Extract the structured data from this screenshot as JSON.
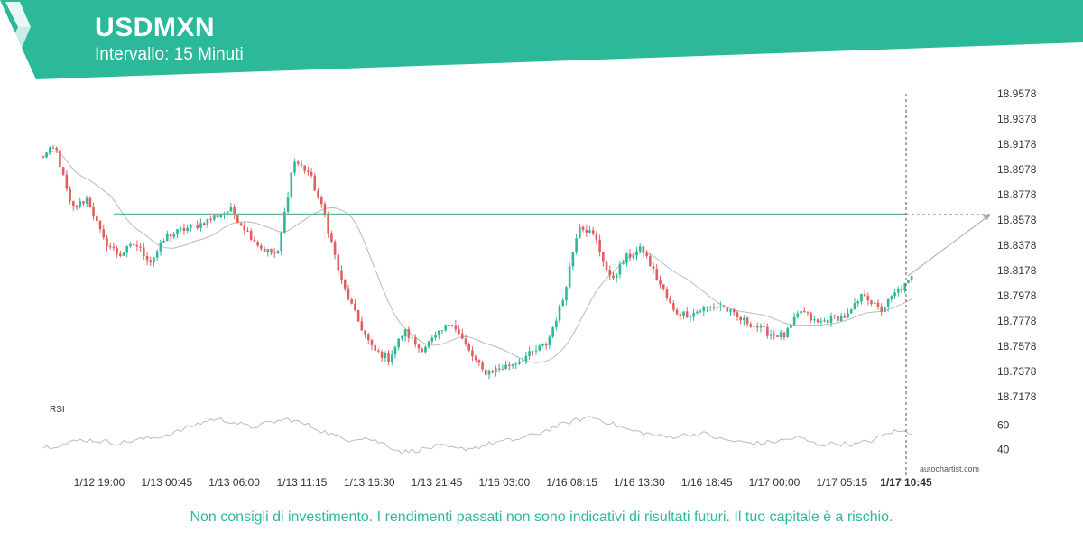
{
  "header": {
    "symbol": "USDMXN",
    "interval": "Intervallo: 15 Minuti"
  },
  "footer": {
    "disclaimer": "Non consigli di investimento. I rendimenti passati non sono indicativi di risultati futuri. Il tuo capitale è a rischio.",
    "watermark": "autochartist.com"
  },
  "colors": {
    "brand": "#2bb99a",
    "up": "#2bb99a",
    "down": "#e0605f",
    "resistance": "#5fb98a",
    "moving_average": "#bbbbbb"
  },
  "chart_data": {
    "type": "candlestick",
    "symbol": "USDMXN",
    "y_ticks": [
      "18.9578",
      "18.9378",
      "18.9178",
      "18.8978",
      "18.8778",
      "18.8578",
      "18.8378",
      "18.8178",
      "18.7978",
      "18.7778",
      "18.7578",
      "18.7378",
      "18.7178"
    ],
    "ylim": [
      18.7178,
      18.9578
    ],
    "x_ticks": [
      "1/12 19:00",
      "1/13 00:45",
      "1/13 06:00",
      "1/13 11:15",
      "1/13 16:30",
      "1/13 21:45",
      "1/16 03:00",
      "1/16 08:15",
      "1/16 13:30",
      "1/16 18:45",
      "1/17 00:00",
      "1/17 05:15",
      "1/17 10:45"
    ],
    "current_time_label": "1/17 10:45",
    "resistance_level": 18.8623,
    "forecast": {
      "from": 18.8135,
      "to": 18.8623
    },
    "price_anchors": [
      18.907,
      18.915,
      18.866,
      18.875,
      18.842,
      18.83,
      18.839,
      18.825,
      18.845,
      18.85,
      18.854,
      18.86,
      18.866,
      18.85,
      18.835,
      18.83,
      18.905,
      18.895,
      18.86,
      18.81,
      18.78,
      18.755,
      18.748,
      18.77,
      18.755,
      18.765,
      18.778,
      18.755,
      18.737,
      18.74,
      18.745,
      18.752,
      18.76,
      18.795,
      18.855,
      18.845,
      18.81,
      18.828,
      18.835,
      18.81,
      18.785,
      18.783,
      18.788,
      18.79,
      18.78,
      18.775,
      18.768,
      18.766,
      18.786,
      18.776,
      18.78,
      18.782,
      18.8,
      18.785,
      18.8,
      18.81
    ],
    "rsi": {
      "label": "RSI",
      "y_ticks": [
        "60",
        "40"
      ],
      "anchors": [
        42,
        44,
        48,
        47,
        45,
        48,
        50,
        54,
        60,
        65,
        63,
        58,
        62,
        65,
        60,
        54,
        48,
        50,
        45,
        38,
        40,
        43,
        40,
        42,
        46,
        48,
        52,
        58,
        63,
        67,
        62,
        56,
        53,
        50,
        52,
        53,
        48,
        46,
        45,
        47,
        50,
        44,
        45,
        44,
        48,
        55,
        54
      ]
    }
  }
}
